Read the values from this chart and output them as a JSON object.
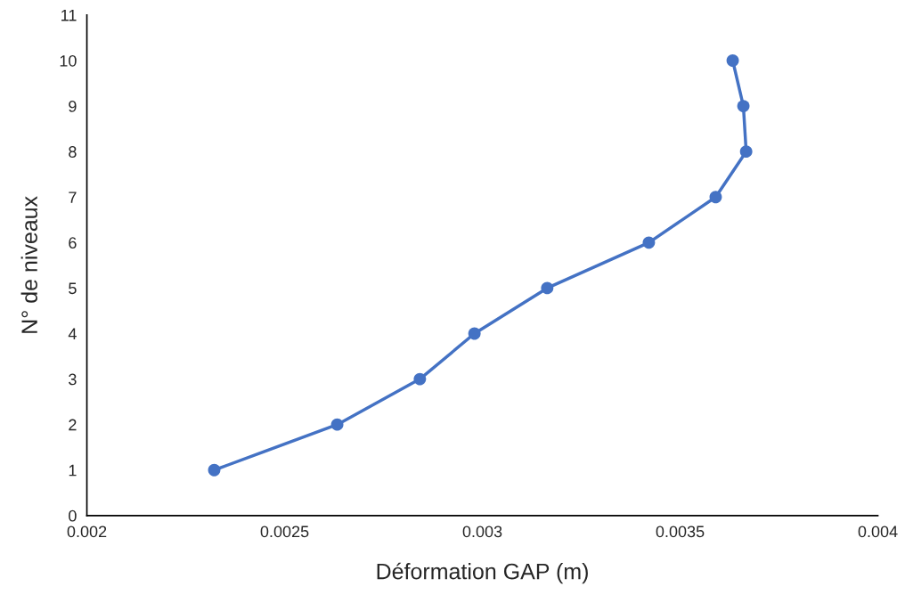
{
  "chart_data": {
    "type": "line",
    "xlabel": "Déformation GAP (m)",
    "ylabel": "N° de niveaux",
    "series": [
      {
        "color": "#4472c4",
        "x": [
          0.002322,
          0.002633,
          0.002842,
          0.00298,
          0.003164,
          0.003421,
          0.00359,
          0.003667,
          0.00366,
          0.003633
        ],
        "values": [
          1,
          2,
          3,
          4,
          5,
          6,
          7,
          8,
          9,
          10
        ]
      }
    ],
    "xlim": [
      0.002,
      0.004
    ],
    "xticks": [
      0.002,
      0.0025,
      0.003,
      0.0035,
      0.004
    ],
    "ylim": [
      0,
      11
    ],
    "yticks": [
      0,
      1,
      2,
      3,
      4,
      5,
      6,
      7,
      8,
      9,
      10,
      11
    ],
    "grid": false,
    "legend": false,
    "marker": "circle",
    "line_style": "solid"
  }
}
